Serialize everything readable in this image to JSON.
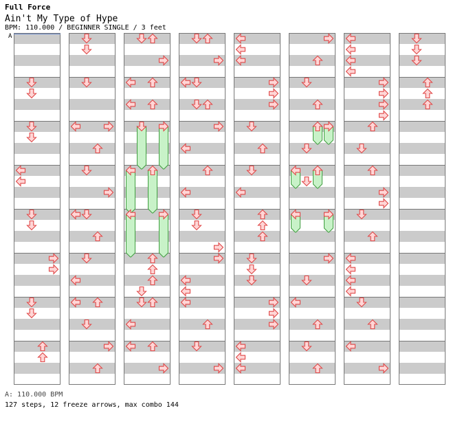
{
  "header": {
    "pack_name": "Full Force",
    "song_title": "Ain't My Type of Hype",
    "chart_info": "BPM: 110.000 / BEGINNER SINGLE / 3 feet"
  },
  "bpm_marker": "A",
  "footer": {
    "bpm_legend": "A: 110.000 BPM",
    "stats": "127 steps, 12 freeze arrows, max combo 144"
  },
  "colors": {
    "stripe": "#cbcbcb",
    "border": "#777777",
    "arrow_fill": "#ffd6d6",
    "arrow_stroke": "#e04848",
    "freeze_fill": "#c8f2c8",
    "freeze_stroke": "#3f9e3f",
    "bpm_line": "#6d8fd1"
  },
  "chart": {
    "columns": 8,
    "measures_per_column": 8,
    "lanes": [
      "left",
      "down",
      "up",
      "right"
    ],
    "notes": [
      {
        "column": 1,
        "measure": 1,
        "beat": 0,
        "lane": "down"
      },
      {
        "column": 1,
        "measure": 1,
        "beat": 0.5,
        "lane": "down"
      },
      {
        "column": 1,
        "measure": 2,
        "beat": 0,
        "lane": "down"
      },
      {
        "column": 1,
        "measure": 2,
        "beat": 0.5,
        "lane": "down"
      },
      {
        "column": 1,
        "measure": 3,
        "beat": 0,
        "lane": "left"
      },
      {
        "column": 1,
        "measure": 3,
        "beat": 0.5,
        "lane": "left"
      },
      {
        "column": 1,
        "measure": 4,
        "beat": 0,
        "lane": "down"
      },
      {
        "column": 1,
        "measure": 4,
        "beat": 0.5,
        "lane": "down"
      },
      {
        "column": 1,
        "measure": 5,
        "beat": 0,
        "lane": "right"
      },
      {
        "column": 1,
        "measure": 5,
        "beat": 0.5,
        "lane": "right"
      },
      {
        "column": 1,
        "measure": 6,
        "beat": 0,
        "lane": "down"
      },
      {
        "column": 1,
        "measure": 6,
        "beat": 0.5,
        "lane": "down"
      },
      {
        "column": 1,
        "measure": 7,
        "beat": 0,
        "lane": "up"
      },
      {
        "column": 1,
        "measure": 7,
        "beat": 0.5,
        "lane": "up"
      },
      {
        "column": 2,
        "measure": 0,
        "beat": 0,
        "lane": "down"
      },
      {
        "column": 2,
        "measure": 0,
        "beat": 0.5,
        "lane": "down"
      },
      {
        "column": 2,
        "measure": 1,
        "beat": 0,
        "lane": "down"
      },
      {
        "column": 2,
        "measure": 2,
        "beat": 0,
        "lane": "left"
      },
      {
        "column": 2,
        "measure": 2,
        "beat": 0,
        "lane": "right"
      },
      {
        "column": 2,
        "measure": 2,
        "beat": 1,
        "lane": "up"
      },
      {
        "column": 2,
        "measure": 3,
        "beat": 0,
        "lane": "down"
      },
      {
        "column": 2,
        "measure": 3,
        "beat": 1,
        "lane": "right"
      },
      {
        "column": 2,
        "measure": 4,
        "beat": 0,
        "lane": "left"
      },
      {
        "column": 2,
        "measure": 4,
        "beat": 0,
        "lane": "down"
      },
      {
        "column": 2,
        "measure": 4,
        "beat": 1,
        "lane": "up"
      },
      {
        "column": 2,
        "measure": 5,
        "beat": 0,
        "lane": "down"
      },
      {
        "column": 2,
        "measure": 5,
        "beat": 1,
        "lane": "left"
      },
      {
        "column": 2,
        "measure": 6,
        "beat": 0,
        "lane": "left"
      },
      {
        "column": 2,
        "measure": 6,
        "beat": 0,
        "lane": "up"
      },
      {
        "column": 2,
        "measure": 6,
        "beat": 1,
        "lane": "down"
      },
      {
        "column": 2,
        "measure": 7,
        "beat": 0,
        "lane": "right"
      },
      {
        "column": 2,
        "measure": 7,
        "beat": 1,
        "lane": "up"
      },
      {
        "column": 3,
        "measure": 0,
        "beat": 0,
        "lane": "down"
      },
      {
        "column": 3,
        "measure": 0,
        "beat": 0,
        "lane": "up"
      },
      {
        "column": 3,
        "measure": 0,
        "beat": 1,
        "lane": "right"
      },
      {
        "column": 3,
        "measure": 1,
        "beat": 0,
        "lane": "left"
      },
      {
        "column": 3,
        "measure": 1,
        "beat": 0,
        "lane": "up"
      },
      {
        "column": 3,
        "measure": 1,
        "beat": 1,
        "lane": "left"
      },
      {
        "column": 3,
        "measure": 1,
        "beat": 1,
        "lane": "up"
      },
      {
        "column": 3,
        "measure": 2,
        "beat": 0,
        "lane": "down",
        "freeze_beats": 1.875
      },
      {
        "column": 3,
        "measure": 2,
        "beat": 0,
        "lane": "right",
        "freeze_beats": 1.875
      },
      {
        "column": 3,
        "measure": 3,
        "beat": 0,
        "lane": "left",
        "freeze_beats": 1.875
      },
      {
        "column": 3,
        "measure": 3,
        "beat": 0,
        "lane": "up",
        "freeze_beats": 1.875
      },
      {
        "column": 3,
        "measure": 4,
        "beat": 0,
        "lane": "left",
        "freeze_beats": 1.875
      },
      {
        "column": 3,
        "measure": 4,
        "beat": 0,
        "lane": "right",
        "freeze_beats": 1.875
      },
      {
        "column": 3,
        "measure": 5,
        "beat": 0,
        "lane": "up"
      },
      {
        "column": 3,
        "measure": 5,
        "beat": 0.5,
        "lane": "up"
      },
      {
        "column": 3,
        "measure": 5,
        "beat": 1,
        "lane": "up"
      },
      {
        "column": 3,
        "measure": 5,
        "beat": 1.5,
        "lane": "down"
      },
      {
        "column": 3,
        "measure": 6,
        "beat": 0,
        "lane": "down"
      },
      {
        "column": 3,
        "measure": 6,
        "beat": 0,
        "lane": "up"
      },
      {
        "column": 3,
        "measure": 6,
        "beat": 1,
        "lane": "left"
      },
      {
        "column": 3,
        "measure": 7,
        "beat": 0,
        "lane": "left"
      },
      {
        "column": 3,
        "measure": 7,
        "beat": 0,
        "lane": "up"
      },
      {
        "column": 3,
        "measure": 7,
        "beat": 1,
        "lane": "right"
      },
      {
        "column": 4,
        "measure": 0,
        "beat": 0,
        "lane": "down"
      },
      {
        "column": 4,
        "measure": 0,
        "beat": 0,
        "lane": "up"
      },
      {
        "column": 4,
        "measure": 0,
        "beat": 1,
        "lane": "right"
      },
      {
        "column": 4,
        "measure": 1,
        "beat": 0,
        "lane": "left"
      },
      {
        "column": 4,
        "measure": 1,
        "beat": 0,
        "lane": "down"
      },
      {
        "column": 4,
        "measure": 1,
        "beat": 1,
        "lane": "down"
      },
      {
        "column": 4,
        "measure": 1,
        "beat": 1,
        "lane": "up"
      },
      {
        "column": 4,
        "measure": 2,
        "beat": 0,
        "lane": "right"
      },
      {
        "column": 4,
        "measure": 2,
        "beat": 1,
        "lane": "left"
      },
      {
        "column": 4,
        "measure": 3,
        "beat": 0,
        "lane": "up"
      },
      {
        "column": 4,
        "measure": 3,
        "beat": 1,
        "lane": "left"
      },
      {
        "column": 4,
        "measure": 4,
        "beat": 0,
        "lane": "down"
      },
      {
        "column": 4,
        "measure": 4,
        "beat": 0.5,
        "lane": "down"
      },
      {
        "column": 4,
        "measure": 4,
        "beat": 1.5,
        "lane": "right"
      },
      {
        "column": 4,
        "measure": 5,
        "beat": 0,
        "lane": "right"
      },
      {
        "column": 4,
        "measure": 5,
        "beat": 1,
        "lane": "left"
      },
      {
        "column": 4,
        "measure": 5,
        "beat": 1.5,
        "lane": "left"
      },
      {
        "column": 4,
        "measure": 6,
        "beat": 0,
        "lane": "left"
      },
      {
        "column": 4,
        "measure": 6,
        "beat": 1,
        "lane": "up"
      },
      {
        "column": 4,
        "measure": 7,
        "beat": 0,
        "lane": "down"
      },
      {
        "column": 4,
        "measure": 7,
        "beat": 1,
        "lane": "right"
      },
      {
        "column": 5,
        "measure": 0,
        "beat": 0,
        "lane": "left"
      },
      {
        "column": 5,
        "measure": 0,
        "beat": 0.5,
        "lane": "left"
      },
      {
        "column": 5,
        "measure": 0,
        "beat": 1,
        "lane": "left"
      },
      {
        "column": 5,
        "measure": 1,
        "beat": 0,
        "lane": "right"
      },
      {
        "column": 5,
        "measure": 1,
        "beat": 0.5,
        "lane": "right"
      },
      {
        "column": 5,
        "measure": 1,
        "beat": 1,
        "lane": "right"
      },
      {
        "column": 5,
        "measure": 2,
        "beat": 0,
        "lane": "down"
      },
      {
        "column": 5,
        "measure": 2,
        "beat": 1,
        "lane": "up"
      },
      {
        "column": 5,
        "measure": 3,
        "beat": 0,
        "lane": "down"
      },
      {
        "column": 5,
        "measure": 3,
        "beat": 1,
        "lane": "left"
      },
      {
        "column": 5,
        "measure": 4,
        "beat": 0,
        "lane": "up"
      },
      {
        "column": 5,
        "measure": 4,
        "beat": 0.5,
        "lane": "up"
      },
      {
        "column": 5,
        "measure": 4,
        "beat": 1,
        "lane": "up"
      },
      {
        "column": 5,
        "measure": 5,
        "beat": 0,
        "lane": "down"
      },
      {
        "column": 5,
        "measure": 5,
        "beat": 0.5,
        "lane": "down"
      },
      {
        "column": 5,
        "measure": 5,
        "beat": 1,
        "lane": "down"
      },
      {
        "column": 5,
        "measure": 6,
        "beat": 0,
        "lane": "right"
      },
      {
        "column": 5,
        "measure": 6,
        "beat": 0.5,
        "lane": "right"
      },
      {
        "column": 5,
        "measure": 6,
        "beat": 1,
        "lane": "right"
      },
      {
        "column": 5,
        "measure": 7,
        "beat": 0,
        "lane": "left"
      },
      {
        "column": 5,
        "measure": 7,
        "beat": 0.5,
        "lane": "left"
      },
      {
        "column": 5,
        "measure": 7,
        "beat": 1,
        "lane": "left"
      },
      {
        "column": 6,
        "measure": 0,
        "beat": 0,
        "lane": "right"
      },
      {
        "column": 6,
        "measure": 0,
        "beat": 1,
        "lane": "up"
      },
      {
        "column": 6,
        "measure": 1,
        "beat": 0,
        "lane": "down"
      },
      {
        "column": 6,
        "measure": 1,
        "beat": 1,
        "lane": "up"
      },
      {
        "column": 6,
        "measure": 2,
        "beat": 0,
        "lane": "up",
        "freeze_beats": 0.75
      },
      {
        "column": 6,
        "measure": 2,
        "beat": 0,
        "lane": "right",
        "freeze_beats": 0.75
      },
      {
        "column": 6,
        "measure": 2,
        "beat": 1,
        "lane": "down"
      },
      {
        "column": 6,
        "measure": 3,
        "beat": 0,
        "lane": "left",
        "freeze_beats": 0.75
      },
      {
        "column": 6,
        "measure": 3,
        "beat": 0,
        "lane": "up",
        "freeze_beats": 0.75
      },
      {
        "column": 6,
        "measure": 3,
        "beat": 0.5,
        "lane": "down"
      },
      {
        "column": 6,
        "measure": 4,
        "beat": 0,
        "lane": "left",
        "freeze_beats": 0.75
      },
      {
        "column": 6,
        "measure": 4,
        "beat": 0,
        "lane": "right",
        "freeze_beats": 0.75
      },
      {
        "column": 6,
        "measure": 5,
        "beat": 0,
        "lane": "right"
      },
      {
        "column": 6,
        "measure": 5,
        "beat": 1,
        "lane": "down"
      },
      {
        "column": 6,
        "measure": 6,
        "beat": 0,
        "lane": "left"
      },
      {
        "column": 6,
        "measure": 6,
        "beat": 1,
        "lane": "up"
      },
      {
        "column": 6,
        "measure": 7,
        "beat": 0,
        "lane": "down"
      },
      {
        "column": 6,
        "measure": 7,
        "beat": 1,
        "lane": "up"
      },
      {
        "column": 7,
        "measure": 0,
        "beat": 0,
        "lane": "left"
      },
      {
        "column": 7,
        "measure": 0,
        "beat": 0.5,
        "lane": "left"
      },
      {
        "column": 7,
        "measure": 0,
        "beat": 1,
        "lane": "left"
      },
      {
        "column": 7,
        "measure": 0,
        "beat": 1.5,
        "lane": "left"
      },
      {
        "column": 7,
        "measure": 1,
        "beat": 0,
        "lane": "right"
      },
      {
        "column": 7,
        "measure": 1,
        "beat": 0.5,
        "lane": "right"
      },
      {
        "column": 7,
        "measure": 1,
        "beat": 1,
        "lane": "right"
      },
      {
        "column": 7,
        "measure": 1,
        "beat": 1.5,
        "lane": "right"
      },
      {
        "column": 7,
        "measure": 2,
        "beat": 0,
        "lane": "up"
      },
      {
        "column": 7,
        "measure": 2,
        "beat": 1,
        "lane": "down"
      },
      {
        "column": 7,
        "measure": 3,
        "beat": 0,
        "lane": "up"
      },
      {
        "column": 7,
        "measure": 3,
        "beat": 1,
        "lane": "right"
      },
      {
        "column": 7,
        "measure": 3,
        "beat": 1.5,
        "lane": "right"
      },
      {
        "column": 7,
        "measure": 4,
        "beat": 0,
        "lane": "down"
      },
      {
        "column": 7,
        "measure": 4,
        "beat": 1,
        "lane": "up"
      },
      {
        "column": 7,
        "measure": 5,
        "beat": 0,
        "lane": "left"
      },
      {
        "column": 7,
        "measure": 5,
        "beat": 0.5,
        "lane": "left"
      },
      {
        "column": 7,
        "measure": 5,
        "beat": 1,
        "lane": "left"
      },
      {
        "column": 7,
        "measure": 5,
        "beat": 1.5,
        "lane": "left"
      },
      {
        "column": 7,
        "measure": 6,
        "beat": 0,
        "lane": "down"
      },
      {
        "column": 7,
        "measure": 6,
        "beat": 1,
        "lane": "up"
      },
      {
        "column": 7,
        "measure": 7,
        "beat": 0,
        "lane": "left"
      },
      {
        "column": 7,
        "measure": 7,
        "beat": 1,
        "lane": "right"
      },
      {
        "column": 8,
        "measure": 0,
        "beat": 0,
        "lane": "down"
      },
      {
        "column": 8,
        "measure": 0,
        "beat": 0.5,
        "lane": "down"
      },
      {
        "column": 8,
        "measure": 0,
        "beat": 1,
        "lane": "down"
      },
      {
        "column": 8,
        "measure": 1,
        "beat": 0,
        "lane": "up"
      },
      {
        "column": 8,
        "measure": 1,
        "beat": 0.5,
        "lane": "up"
      },
      {
        "column": 8,
        "measure": 1,
        "beat": 1,
        "lane": "up"
      }
    ]
  }
}
